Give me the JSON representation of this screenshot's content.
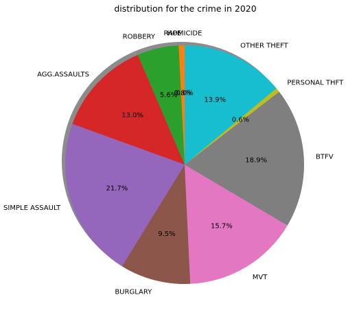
{
  "chart_data": {
    "type": "pie",
    "title": "distribution for the crime in 2020",
    "start_angle_deg": 90,
    "direction": "counterclockwise",
    "shadow": true,
    "slices": [
      {
        "label": "HOMICIDE",
        "value": 0.0,
        "pct_label": "0.0%",
        "color": "#1f77b4"
      },
      {
        "label": "RAPE",
        "value": 0.8,
        "pct_label": "0.8%",
        "color": "#ff7f0e"
      },
      {
        "label": "ROBBERY",
        "value": 5.6,
        "pct_label": "5.6%",
        "color": "#2ca02c"
      },
      {
        "label": "AGG.ASSAULTS",
        "value": 13.0,
        "pct_label": "13.0%",
        "color": "#d62728"
      },
      {
        "label": "SIMPLE ASSAULT",
        "value": 21.7,
        "pct_label": "21.7%",
        "color": "#9467bd"
      },
      {
        "label": "BURGLARY",
        "value": 9.5,
        "pct_label": "9.5%",
        "color": "#8c564b"
      },
      {
        "label": "MVT",
        "value": 15.7,
        "pct_label": "15.7%",
        "color": "#e377c2"
      },
      {
        "label": "BTFV",
        "value": 18.9,
        "pct_label": "18.9%",
        "color": "#7f7f7f"
      },
      {
        "label": "PERSONAL THFT",
        "value": 0.6,
        "pct_label": "0.6%",
        "color": "#bcbd22"
      },
      {
        "label": "OTHER THEFT",
        "value": 13.9,
        "pct_label": "13.9%",
        "color": "#17becf"
      }
    ]
  }
}
